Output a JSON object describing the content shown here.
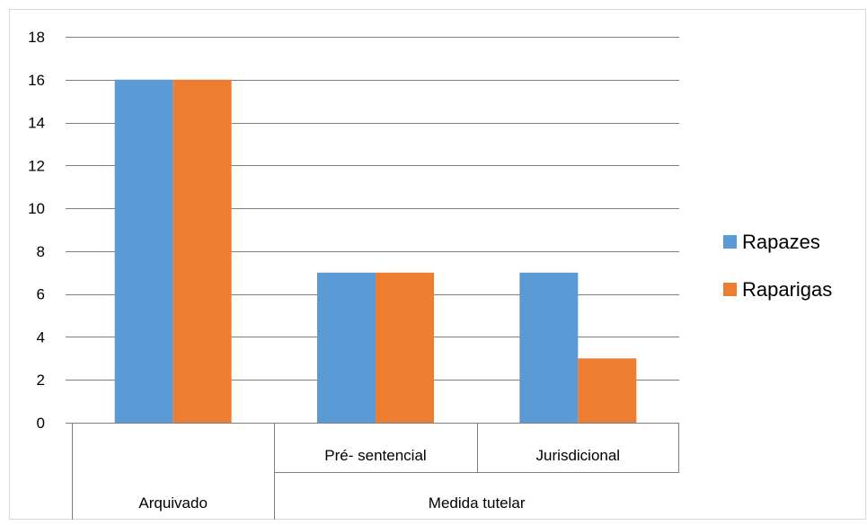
{
  "chart_data": {
    "type": "bar",
    "title": "",
    "xlabel": "",
    "ylabel": "",
    "ylim": [
      0,
      18
    ],
    "y_ticks": [
      0,
      2,
      4,
      6,
      8,
      10,
      12,
      14,
      16,
      18
    ],
    "grid": true,
    "legend_position": "right",
    "categories": [
      "Arquivado",
      "Pré- sentencial",
      "Jurisdicional"
    ],
    "category_groups": [
      {
        "label": "Arquivado",
        "span": 1,
        "subcategory": ""
      },
      {
        "label": "Medida tutelar",
        "span": 2,
        "subcategories": [
          "Pré- sentencial",
          "Jurisdicional"
        ]
      }
    ],
    "series": [
      {
        "name": "Rapazes",
        "color": "#5b9bd5",
        "values": [
          16,
          7,
          7
        ]
      },
      {
        "name": "Raparigas",
        "color": "#ed7d31",
        "values": [
          16,
          7,
          3
        ]
      }
    ]
  }
}
